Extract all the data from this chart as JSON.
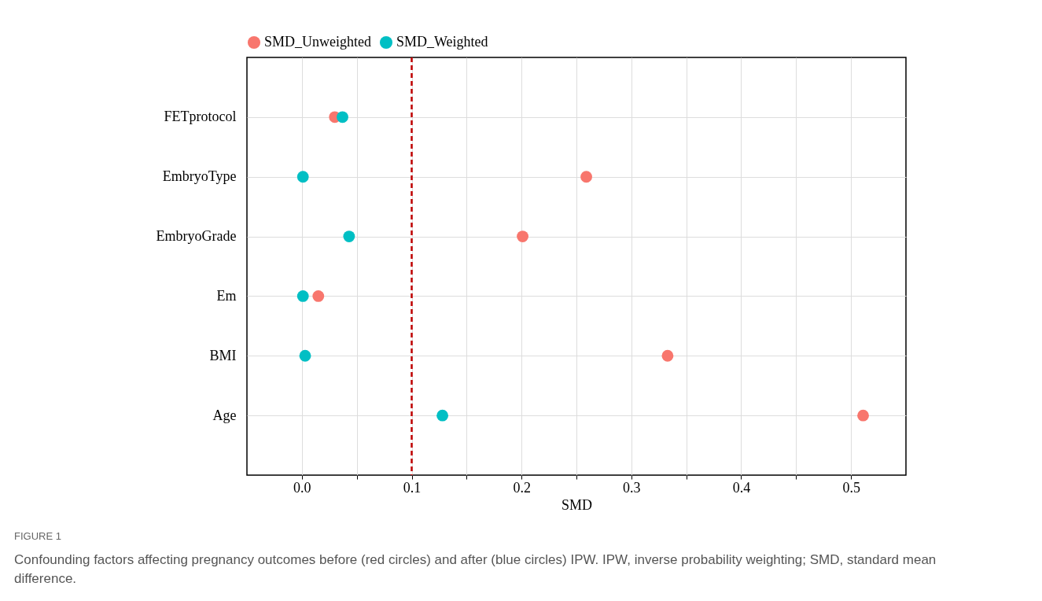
{
  "chart_data": {
    "type": "scatter",
    "xlabel": "SMD",
    "categories": [
      "FETprotocol",
      "EmbryoType",
      "EmbryoGrade",
      "Em",
      "BMI",
      "Age"
    ],
    "orientation": "horizontal",
    "series": [
      {
        "name": "SMD_Unweighted",
        "color": "#f8766d",
        "values": [
          0.03,
          0.259,
          0.201,
          0.015,
          0.333,
          0.511
        ]
      },
      {
        "name": "SMD_Weighted",
        "color": "#00bfc4",
        "values": [
          0.037,
          0.001,
          0.043,
          0.001,
          0.003,
          0.128
        ]
      }
    ],
    "xlim": [
      -0.05,
      0.55
    ],
    "xticks": [
      {
        "value": 0,
        "label": "0.0"
      },
      {
        "value": 0.05,
        "label": null
      },
      0.1,
      {
        "value": 0.15,
        "label": null
      },
      0.2,
      {
        "value": 0.25,
        "label": null
      },
      0.3,
      {
        "value": 0.35,
        "label": null
      },
      0.4,
      {
        "value": 0.45,
        "label": null
      },
      0.5
    ],
    "ref_lines": [
      {
        "axis": "x",
        "value": 0.1,
        "color": "#c00000",
        "line_style": "dashed"
      }
    ],
    "grid": true,
    "legend": "top",
    "marker": "circle",
    "annotations": [
      "FIGURE 1",
      "Confounding factors affecting pregnancy outcomes before (red circles) and after (blue circles) IPW. IPW, inverse probability weighting; SMD, standard mean difference."
    ]
  }
}
